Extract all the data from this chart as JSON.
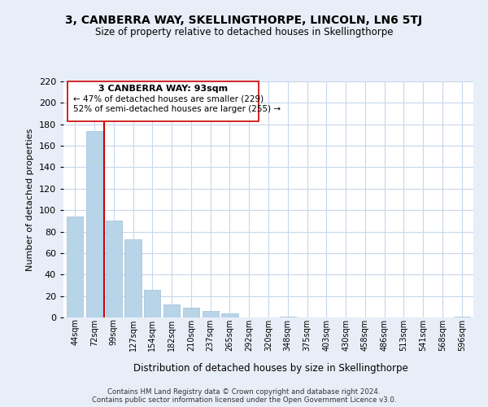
{
  "title": "3, CANBERRA WAY, SKELLINGTHORPE, LINCOLN, LN6 5TJ",
  "subtitle": "Size of property relative to detached houses in Skellingthorpe",
  "xlabel": "Distribution of detached houses by size in Skellingthorpe",
  "ylabel": "Number of detached properties",
  "bar_labels": [
    "44sqm",
    "72sqm",
    "99sqm",
    "127sqm",
    "154sqm",
    "182sqm",
    "210sqm",
    "237sqm",
    "265sqm",
    "292sqm",
    "320sqm",
    "348sqm",
    "375sqm",
    "403sqm",
    "430sqm",
    "458sqm",
    "486sqm",
    "513sqm",
    "541sqm",
    "568sqm",
    "596sqm"
  ],
  "bar_values": [
    94,
    174,
    90,
    73,
    26,
    12,
    9,
    6,
    4,
    0,
    0,
    1,
    0,
    0,
    0,
    0,
    0,
    0,
    0,
    0,
    1
  ],
  "bar_color": "#b8d4e8",
  "bar_edge_color": "#a0c0d8",
  "vline_x": 1.5,
  "vline_color": "#cc0000",
  "ylim": [
    0,
    220
  ],
  "yticks": [
    0,
    20,
    40,
    60,
    80,
    100,
    120,
    140,
    160,
    180,
    200,
    220
  ],
  "annotation_title": "3 CANBERRA WAY: 93sqm",
  "annotation_line1": "← 47% of detached houses are smaller (229)",
  "annotation_line2": "52% of semi-detached houses are larger (255) →",
  "footer1": "Contains HM Land Registry data © Crown copyright and database right 2024.",
  "footer2": "Contains public sector information licensed under the Open Government Licence v3.0.",
  "bg_color": "#e8eef8",
  "plot_bg_color": "#ffffff",
  "grid_color": "#c8d8ec"
}
